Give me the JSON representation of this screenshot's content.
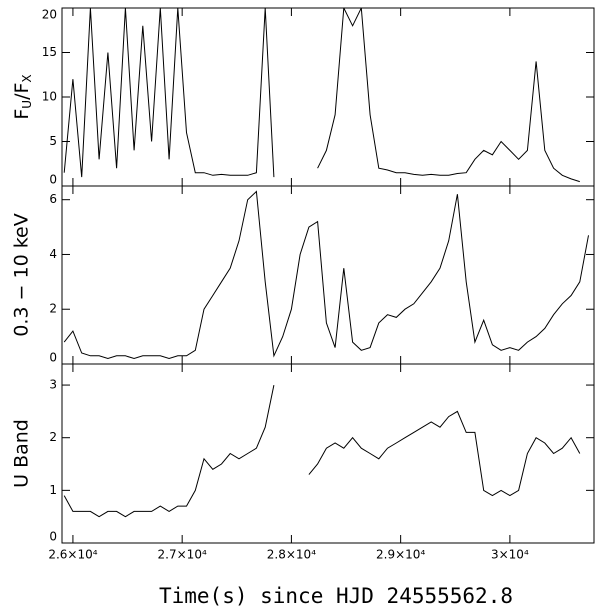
{
  "chart_data": [
    {
      "type": "line",
      "color": "#000000",
      "ylabel": [
        "F",
        "U",
        "/F",
        "X"
      ],
      "ylim": [
        0,
        20
      ],
      "yticks": [
        0,
        5,
        10,
        15,
        20
      ],
      "xlim": [
        25900,
        30770
      ],
      "xticks": [
        26000,
        27000,
        28000,
        29000,
        30000
      ],
      "x": [
        25920,
        26000,
        26080,
        26160,
        26240,
        26320,
        26400,
        26480,
        26560,
        26640,
        26720,
        26800,
        26880,
        26960,
        27040,
        27120,
        27200,
        27280,
        27360,
        27440,
        27520,
        27600,
        27680,
        27760,
        27840,
        27920,
        28000,
        28080,
        28160,
        28240,
        28320,
        28400,
        28480,
        28560,
        28640,
        28720,
        28800,
        28880,
        28960,
        29040,
        29120,
        29200,
        29280,
        29360,
        29440,
        29520,
        29600,
        29680,
        29760,
        29840,
        29920,
        30000,
        30080,
        30160,
        30240,
        30320,
        30400,
        30480,
        30560,
        30640,
        30720
      ],
      "values": [
        1.5,
        12,
        1,
        20,
        3,
        15,
        2,
        20,
        4,
        18,
        5,
        20,
        3,
        20,
        6,
        1.5,
        1.5,
        1.2,
        1.3,
        1.2,
        1.2,
        1.2,
        1.5,
        20,
        1,
        null,
        null,
        null,
        null,
        2,
        4,
        8,
        20,
        18,
        20,
        8,
        2,
        1.8,
        1.5,
        1.5,
        1.3,
        1.2,
        1.3,
        1.2,
        1.2,
        1.4,
        1.5,
        3,
        4,
        3.5,
        5,
        4,
        3,
        4,
        14,
        4,
        2,
        1.2,
        0.8,
        0.5,
        null
      ]
    },
    {
      "type": "line",
      "color": "#000000",
      "ylabel": "0.3 − 10 keV",
      "ylim": [
        0,
        6.5
      ],
      "yticks": [
        0,
        2,
        4,
        6
      ],
      "xlim": [
        25900,
        30770
      ],
      "xticks": [
        26000,
        27000,
        28000,
        29000,
        30000
      ],
      "x": [
        25920,
        26000,
        26080,
        26160,
        26240,
        26320,
        26400,
        26480,
        26560,
        26640,
        26720,
        26800,
        26880,
        26960,
        27040,
        27120,
        27200,
        27280,
        27360,
        27440,
        27520,
        27600,
        27680,
        27760,
        27840,
        27920,
        28000,
        28080,
        28160,
        28240,
        28320,
        28400,
        28480,
        28560,
        28640,
        28720,
        28800,
        28880,
        28960,
        29040,
        29120,
        29200,
        29280,
        29360,
        29440,
        29520,
        29600,
        29680,
        29760,
        29840,
        29920,
        30000,
        30080,
        30160,
        30240,
        30320,
        30400,
        30480,
        30560,
        30640,
        30720
      ],
      "values": [
        0.8,
        1.2,
        0.4,
        0.3,
        0.3,
        0.2,
        0.3,
        0.3,
        0.2,
        0.3,
        0.3,
        0.3,
        0.2,
        0.3,
        0.3,
        0.5,
        2,
        2.5,
        3,
        3.5,
        4.5,
        6,
        6.3,
        3,
        0.3,
        1,
        2,
        4,
        5,
        5.2,
        1.5,
        0.6,
        3.5,
        0.8,
        0.5,
        0.6,
        1.5,
        1.8,
        1.7,
        2,
        2.2,
        2.6,
        3,
        3.5,
        4.5,
        6.2,
        3,
        0.8,
        1.6,
        0.7,
        0.5,
        0.6,
        0.5,
        0.8,
        1,
        1.3,
        1.8,
        2.2,
        2.5,
        3,
        4.7
      ]
    },
    {
      "type": "line",
      "color": "#000000",
      "ylabel": "U Band",
      "xlabel": "Time(s) since HJD 24555562.8",
      "ylim": [
        0,
        3.4
      ],
      "yticks": [
        0,
        1,
        2,
        3
      ],
      "xlim": [
        25900,
        30770
      ],
      "xticks": [
        {
          "value": 26000,
          "label": "2.6×10⁴"
        },
        {
          "value": 27000,
          "label": "2.7×10⁴"
        },
        {
          "value": 28000,
          "label": "2.8×10⁴"
        },
        {
          "value": 29000,
          "label": "2.9×10⁴"
        },
        {
          "value": 30000,
          "label": "3×10⁴"
        }
      ],
      "x": [
        25920,
        26000,
        26080,
        26160,
        26240,
        26320,
        26400,
        26480,
        26560,
        26640,
        26720,
        26800,
        26880,
        26960,
        27040,
        27120,
        27200,
        27280,
        27360,
        27440,
        27520,
        27600,
        27680,
        27760,
        27840,
        27920,
        28000,
        28080,
        28160,
        28240,
        28320,
        28400,
        28480,
        28560,
        28640,
        28720,
        28800,
        28880,
        28960,
        29040,
        29120,
        29200,
        29280,
        29360,
        29440,
        29520,
        29600,
        29680,
        29760,
        29840,
        29920,
        30000,
        30080,
        30160,
        30240,
        30320,
        30400,
        30480,
        30560,
        30640,
        30720
      ],
      "values": [
        0.9,
        0.6,
        0.6,
        0.6,
        0.5,
        0.6,
        0.6,
        0.5,
        0.6,
        0.6,
        0.6,
        0.7,
        0.6,
        0.7,
        0.7,
        1,
        1.6,
        1.4,
        1.5,
        1.7,
        1.6,
        1.7,
        1.8,
        2.2,
        3,
        null,
        null,
        null,
        1.3,
        1.5,
        1.8,
        1.9,
        1.8,
        2,
        1.8,
        1.7,
        1.6,
        1.8,
        1.9,
        2,
        2.1,
        2.2,
        2.3,
        2.2,
        2.4,
        2.5,
        2.1,
        2.1,
        1,
        0.9,
        1,
        0.9,
        1,
        1.7,
        2,
        1.9,
        1.7,
        1.8,
        2,
        1.7,
        null
      ]
    }
  ]
}
